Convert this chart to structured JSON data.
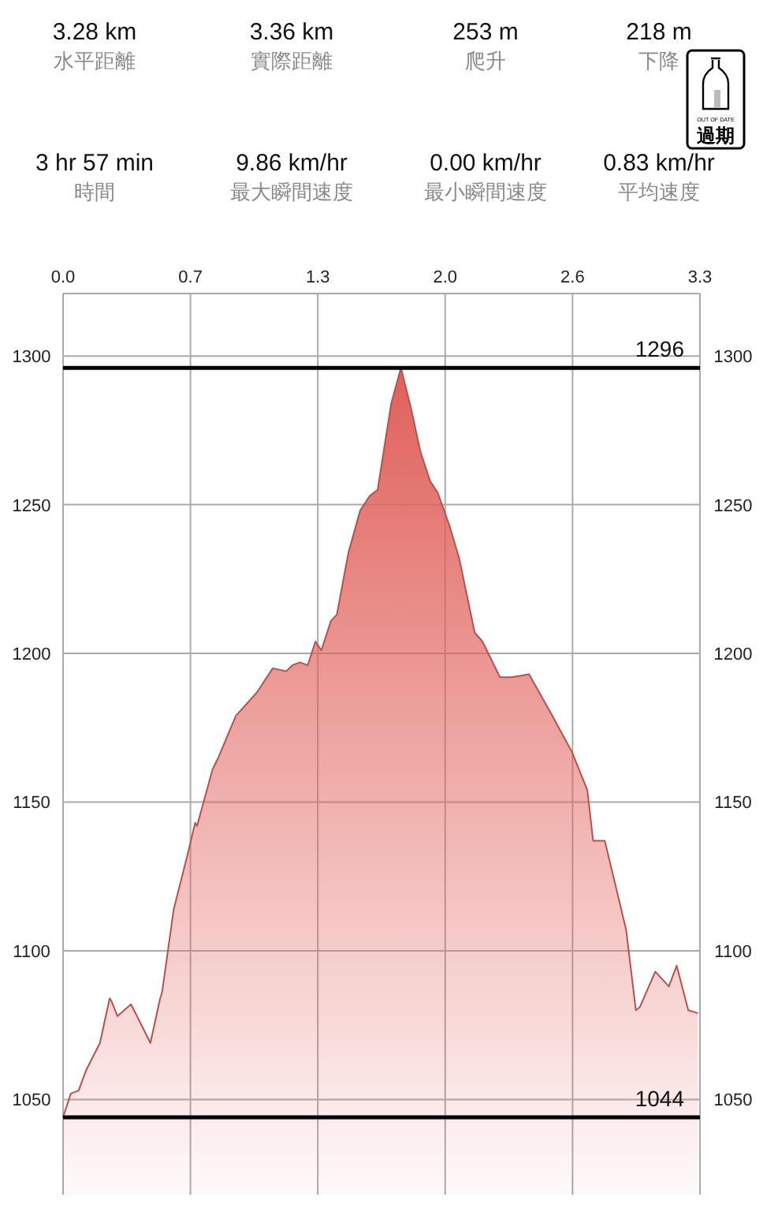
{
  "chart_data": [
    {
      "type": "other",
      "annotations": [
        "3.28 km",
        "水平距離",
        "3.36 km",
        "實際距離",
        "253 m",
        "爬升",
        "218 m",
        "下降",
        "3 hr 57 min",
        "時間",
        "9.86 km/hr",
        "最大瞬間速度",
        "0.00 km/hr",
        "最小瞬間速度",
        "0.83 km/hr",
        "平均速度",
        "OUT OF DATE",
        "過期"
      ]
    },
    {
      "type": "area",
      "color": "#e0605a",
      "x": [
        0,
        0.04,
        0.08,
        0.12,
        0.19,
        0.24,
        0.25,
        0.28,
        0.35,
        0.45,
        0.5,
        0.51,
        0.57,
        0.64,
        0.68,
        0.69,
        0.77,
        0.8,
        0.89,
        1.0,
        1.08,
        1.15,
        1.18,
        1.22,
        1.26,
        1.3,
        1.33,
        1.38,
        1.41,
        1.47,
        1.53,
        1.58,
        1.62,
        1.69,
        1.74,
        1.79,
        1.84,
        1.89,
        1.93,
        1.99,
        2.04,
        2.12,
        2.16,
        2.25,
        2.31,
        2.4,
        2.52,
        2.62,
        2.7,
        2.73,
        2.79,
        2.9,
        2.95,
        2.97,
        3.05,
        3.12,
        3.16,
        3.22,
        3.27
      ],
      "values": [
        1044,
        1052,
        1053,
        1060,
        1069,
        1084,
        1083,
        1078,
        1082,
        1069,
        1084,
        1086,
        1114,
        1132,
        1143,
        1142,
        1161,
        1165,
        1179,
        1187,
        1195,
        1194,
        1196,
        1197,
        1196,
        1204,
        1201,
        1211,
        1213,
        1234,
        1248,
        1253,
        1255,
        1284,
        1296,
        1283,
        1268,
        1258,
        1254,
        1243,
        1232,
        1207,
        1204,
        1192,
        1192,
        1193,
        1179,
        1167,
        1154,
        1137,
        1137,
        1107,
        1080,
        1081,
        1093,
        1088,
        1095,
        1080,
        1079
      ],
      "xlim": [
        0,
        3.28
      ],
      "xticks": [
        {
          "value": 0,
          "label": "0.0"
        },
        {
          "value": 0.656,
          "label": "0.7"
        },
        {
          "value": 1.312,
          "label": "1.3"
        },
        {
          "value": 1.968,
          "label": "2.0"
        },
        {
          "value": 2.624,
          "label": "2.6"
        },
        {
          "value": 3.28,
          "label": "3.3"
        }
      ],
      "ylim": [
        1018,
        1321
      ],
      "yticks": [
        1050,
        1100,
        1150,
        1200,
        1250,
        1300
      ],
      "y2lim": [
        1018,
        1321
      ],
      "y2ticks": [
        1050,
        1100,
        1150,
        1200,
        1250,
        1300
      ],
      "grid": true,
      "ref_lines": [
        {
          "axis": "y",
          "value": 1296,
          "label": "1296",
          "color": "#000000"
        },
        {
          "axis": "y",
          "value": 1044,
          "label": "1044",
          "color": "#000000"
        }
      ]
    }
  ]
}
